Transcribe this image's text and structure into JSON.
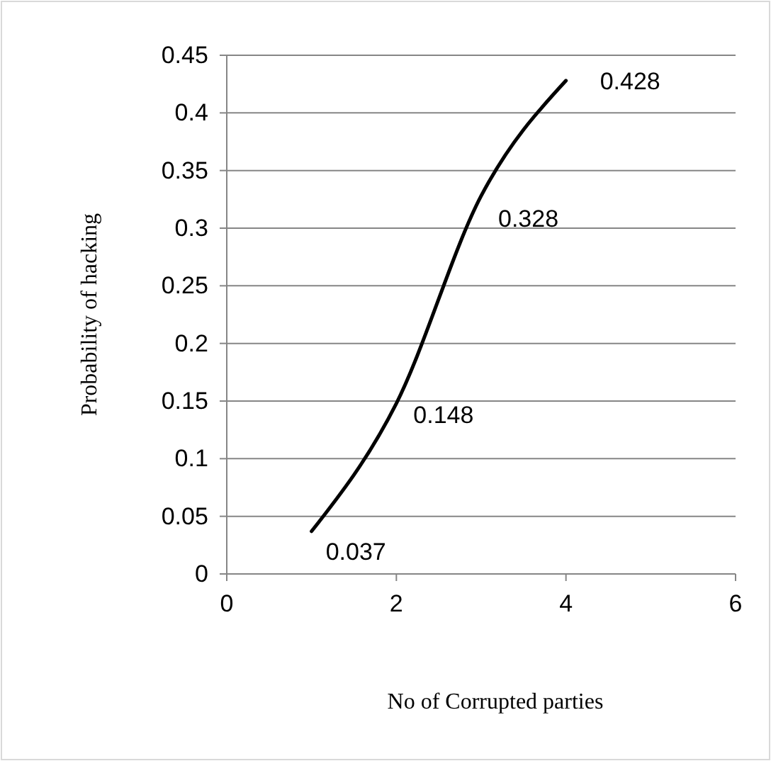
{
  "chart_data": {
    "type": "line",
    "xlabel": "No of Corrupted parties",
    "ylabel": "Probability of hacking",
    "x": [
      1,
      2,
      3,
      4
    ],
    "series": [
      {
        "color": "#000000",
        "values": [
          0.037,
          0.148,
          0.328,
          0.428
        ]
      }
    ],
    "xlim": [
      0,
      6
    ],
    "xticks": [
      0,
      2,
      4,
      6
    ],
    "ylim": [
      0,
      0.45
    ],
    "yticks": [
      0,
      0.05,
      0.1,
      0.15,
      0.2,
      0.25,
      0.3,
      0.35,
      0.4,
      0.45
    ],
    "grid": "y",
    "marker": "none",
    "line_style": "solid",
    "data_labels": true
  }
}
